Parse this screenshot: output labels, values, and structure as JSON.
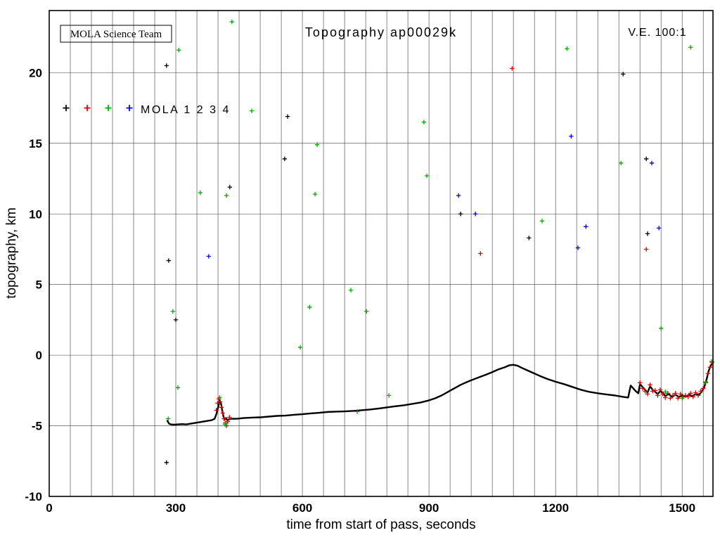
{
  "page": {
    "background": "#ffffff"
  },
  "chart_data": {
    "type": "scatter",
    "title": "Topography ap00029k",
    "credit": "MOLA Science Team",
    "vertical_exaggeration": "V.E. 100:1",
    "xlabel": "time from start of pass, seconds",
    "ylabel": "topography, km",
    "xlim": [
      0,
      1573
    ],
    "ylim": [
      -10,
      24.4
    ],
    "xticks": [
      0,
      300,
      600,
      900,
      1200,
      1500
    ],
    "yticks": [
      -10,
      -5,
      0,
      5,
      10,
      15,
      20
    ],
    "grid": {
      "x_step": 50,
      "y_step": 5,
      "color": "#3a3a3a",
      "on": true
    },
    "legend": {
      "label": "MOLA 1 2 3 4",
      "marker_colors": [
        "#000000",
        "#dd0000",
        "#00aa00",
        "#0000cc"
      ],
      "marker_x": [
        40,
        90,
        140,
        190
      ],
      "y": 17.5,
      "position": "upper-left"
    },
    "series": [
      {
        "name": "ground-profile",
        "type": "line",
        "color": "#000000",
        "points": [
          [
            280,
            -4.65
          ],
          [
            284,
            -4.85
          ],
          [
            288,
            -4.9
          ],
          [
            295,
            -4.92
          ],
          [
            305,
            -4.9
          ],
          [
            315,
            -4.88
          ],
          [
            325,
            -4.9
          ],
          [
            335,
            -4.85
          ],
          [
            345,
            -4.8
          ],
          [
            355,
            -4.75
          ],
          [
            365,
            -4.7
          ],
          [
            375,
            -4.65
          ],
          [
            385,
            -4.6
          ],
          [
            392,
            -4.5
          ],
          [
            397,
            -4.1
          ],
          [
            401,
            -3.6
          ],
          [
            404,
            -3.2
          ],
          [
            407,
            -3.4
          ],
          [
            410,
            -3.9
          ],
          [
            413,
            -4.35
          ],
          [
            416,
            -4.55
          ],
          [
            419,
            -4.45
          ],
          [
            422,
            -4.6
          ],
          [
            426,
            -4.55
          ],
          [
            432,
            -4.5
          ],
          [
            445,
            -4.5
          ],
          [
            460,
            -4.45
          ],
          [
            480,
            -4.42
          ],
          [
            500,
            -4.4
          ],
          [
            520,
            -4.35
          ],
          [
            540,
            -4.3
          ],
          [
            560,
            -4.28
          ],
          [
            580,
            -4.22
          ],
          [
            600,
            -4.18
          ],
          [
            620,
            -4.12
          ],
          [
            640,
            -4.08
          ],
          [
            660,
            -4.02
          ],
          [
            680,
            -4.0
          ],
          [
            700,
            -3.98
          ],
          [
            720,
            -3.95
          ],
          [
            740,
            -3.9
          ],
          [
            760,
            -3.85
          ],
          [
            780,
            -3.78
          ],
          [
            800,
            -3.7
          ],
          [
            820,
            -3.62
          ],
          [
            840,
            -3.55
          ],
          [
            860,
            -3.45
          ],
          [
            880,
            -3.35
          ],
          [
            900,
            -3.2
          ],
          [
            915,
            -3.05
          ],
          [
            930,
            -2.85
          ],
          [
            945,
            -2.6
          ],
          [
            960,
            -2.35
          ],
          [
            975,
            -2.1
          ],
          [
            990,
            -1.9
          ],
          [
            1005,
            -1.72
          ],
          [
            1020,
            -1.55
          ],
          [
            1035,
            -1.38
          ],
          [
            1050,
            -1.2
          ],
          [
            1065,
            -1.0
          ],
          [
            1080,
            -0.85
          ],
          [
            1090,
            -0.72
          ],
          [
            1100,
            -0.68
          ],
          [
            1110,
            -0.75
          ],
          [
            1120,
            -0.9
          ],
          [
            1135,
            -1.1
          ],
          [
            1150,
            -1.3
          ],
          [
            1165,
            -1.5
          ],
          [
            1180,
            -1.68
          ],
          [
            1200,
            -1.88
          ],
          [
            1220,
            -2.05
          ],
          [
            1240,
            -2.25
          ],
          [
            1260,
            -2.45
          ],
          [
            1280,
            -2.6
          ],
          [
            1300,
            -2.7
          ],
          [
            1320,
            -2.78
          ],
          [
            1340,
            -2.85
          ],
          [
            1360,
            -2.95
          ],
          [
            1372,
            -3.0
          ],
          [
            1378,
            -2.15
          ],
          [
            1384,
            -2.35
          ],
          [
            1390,
            -2.55
          ],
          [
            1396,
            -2.7
          ],
          [
            1400,
            -2.05
          ],
          [
            1406,
            -2.25
          ],
          [
            1412,
            -2.45
          ],
          [
            1418,
            -2.65
          ],
          [
            1424,
            -2.2
          ],
          [
            1430,
            -2.45
          ],
          [
            1436,
            -2.6
          ],
          [
            1442,
            -2.75
          ],
          [
            1448,
            -2.55
          ],
          [
            1454,
            -2.65
          ],
          [
            1460,
            -2.9
          ],
          [
            1468,
            -2.75
          ],
          [
            1476,
            -2.95
          ],
          [
            1484,
            -2.8
          ],
          [
            1492,
            -2.95
          ],
          [
            1500,
            -2.85
          ],
          [
            1508,
            -2.95
          ],
          [
            1516,
            -2.8
          ],
          [
            1524,
            -2.9
          ],
          [
            1532,
            -2.75
          ],
          [
            1540,
            -2.8
          ],
          [
            1546,
            -2.6
          ],
          [
            1552,
            -2.3
          ],
          [
            1558,
            -1.7
          ],
          [
            1563,
            -1.1
          ],
          [
            1567,
            -0.8
          ],
          [
            1571,
            -0.55
          ]
        ]
      },
      {
        "name": "mola2-profile-noise",
        "type": "scatter",
        "color": "#dd0000",
        "points": [
          [
            396,
            -3.9
          ],
          [
            399,
            -3.4
          ],
          [
            402,
            -3.1
          ],
          [
            405,
            -3.3
          ],
          [
            408,
            -3.7
          ],
          [
            411,
            -4.1
          ],
          [
            414,
            -4.5
          ],
          [
            417,
            -4.8
          ],
          [
            420,
            -5.0
          ],
          [
            423,
            -4.7
          ],
          [
            427,
            -4.4
          ],
          [
            1400,
            -1.95
          ],
          [
            1406,
            -2.35
          ],
          [
            1412,
            -2.55
          ],
          [
            1418,
            -2.75
          ],
          [
            1424,
            -2.1
          ],
          [
            1430,
            -2.55
          ],
          [
            1436,
            -2.5
          ],
          [
            1442,
            -2.85
          ],
          [
            1448,
            -2.45
          ],
          [
            1454,
            -2.75
          ],
          [
            1460,
            -3.0
          ],
          [
            1466,
            -2.7
          ],
          [
            1472,
            -3.05
          ],
          [
            1478,
            -2.85
          ],
          [
            1484,
            -2.7
          ],
          [
            1490,
            -3.05
          ],
          [
            1496,
            -2.75
          ],
          [
            1502,
            -2.95
          ],
          [
            1508,
            -2.85
          ],
          [
            1514,
            -2.95
          ],
          [
            1520,
            -2.7
          ],
          [
            1526,
            -2.95
          ],
          [
            1532,
            -2.65
          ],
          [
            1538,
            -2.85
          ],
          [
            1544,
            -2.55
          ],
          [
            1550,
            -2.35
          ],
          [
            1556,
            -1.9
          ],
          [
            1561,
            -1.3
          ],
          [
            1566,
            -0.85
          ],
          [
            1571,
            -0.5
          ]
        ]
      },
      {
        "name": "mola3-profile-noise",
        "type": "scatter",
        "color": "#00aa00",
        "points": [
          [
            282,
            -4.5
          ],
          [
            305,
            -2.3
          ],
          [
            404,
            -3.0
          ],
          [
            417,
            -4.9
          ],
          [
            730,
            -4.0
          ],
          [
            1460,
            -2.6
          ],
          [
            1500,
            -3.05
          ],
          [
            1556,
            -1.95
          ],
          [
            1570,
            -0.45
          ]
        ]
      },
      {
        "name": "mola1-cloud-returns",
        "type": "scatter",
        "color": "#000000",
        "points": [
          [
            278,
            20.5
          ],
          [
            283,
            6.7
          ],
          [
            300,
            2.5
          ],
          [
            278,
            -7.6
          ],
          [
            428,
            11.9
          ],
          [
            565,
            16.9
          ],
          [
            558,
            13.9
          ],
          [
            975,
            10.0
          ],
          [
            1137,
            8.3
          ],
          [
            1360,
            19.9
          ],
          [
            1415,
            13.9
          ],
          [
            1418,
            8.6
          ]
        ]
      },
      {
        "name": "mola2-cloud-returns",
        "type": "scatter",
        "color": "#dd0000",
        "points": [
          [
            1022,
            7.2
          ],
          [
            1097,
            20.3
          ],
          [
            1415,
            7.5
          ]
        ]
      },
      {
        "name": "mola3-cloud-returns",
        "type": "scatter",
        "color": "#00aa00",
        "points": [
          [
            307,
            21.6
          ],
          [
            433,
            23.6
          ],
          [
            480,
            17.3
          ],
          [
            358,
            11.5
          ],
          [
            420,
            11.3
          ],
          [
            293,
            3.1
          ],
          [
            595,
            0.55
          ],
          [
            617,
            3.4
          ],
          [
            635,
            14.9
          ],
          [
            630,
            11.4
          ],
          [
            715,
            4.6
          ],
          [
            752,
            3.1
          ],
          [
            805,
            -2.85
          ],
          [
            888,
            16.5
          ],
          [
            895,
            12.7
          ],
          [
            1168,
            9.5
          ],
          [
            1227,
            21.7
          ],
          [
            1355,
            13.6
          ],
          [
            1450,
            1.9
          ],
          [
            1520,
            21.8
          ]
        ]
      },
      {
        "name": "mola4-cloud-returns",
        "type": "scatter",
        "color": "#0000cc",
        "points": [
          [
            378,
            7.0
          ],
          [
            970,
            11.3
          ],
          [
            1010,
            10.0
          ],
          [
            1237,
            15.5
          ],
          [
            1253,
            7.6
          ],
          [
            1272,
            9.1
          ],
          [
            1428,
            13.6
          ],
          [
            1445,
            9.0
          ]
        ]
      }
    ]
  }
}
